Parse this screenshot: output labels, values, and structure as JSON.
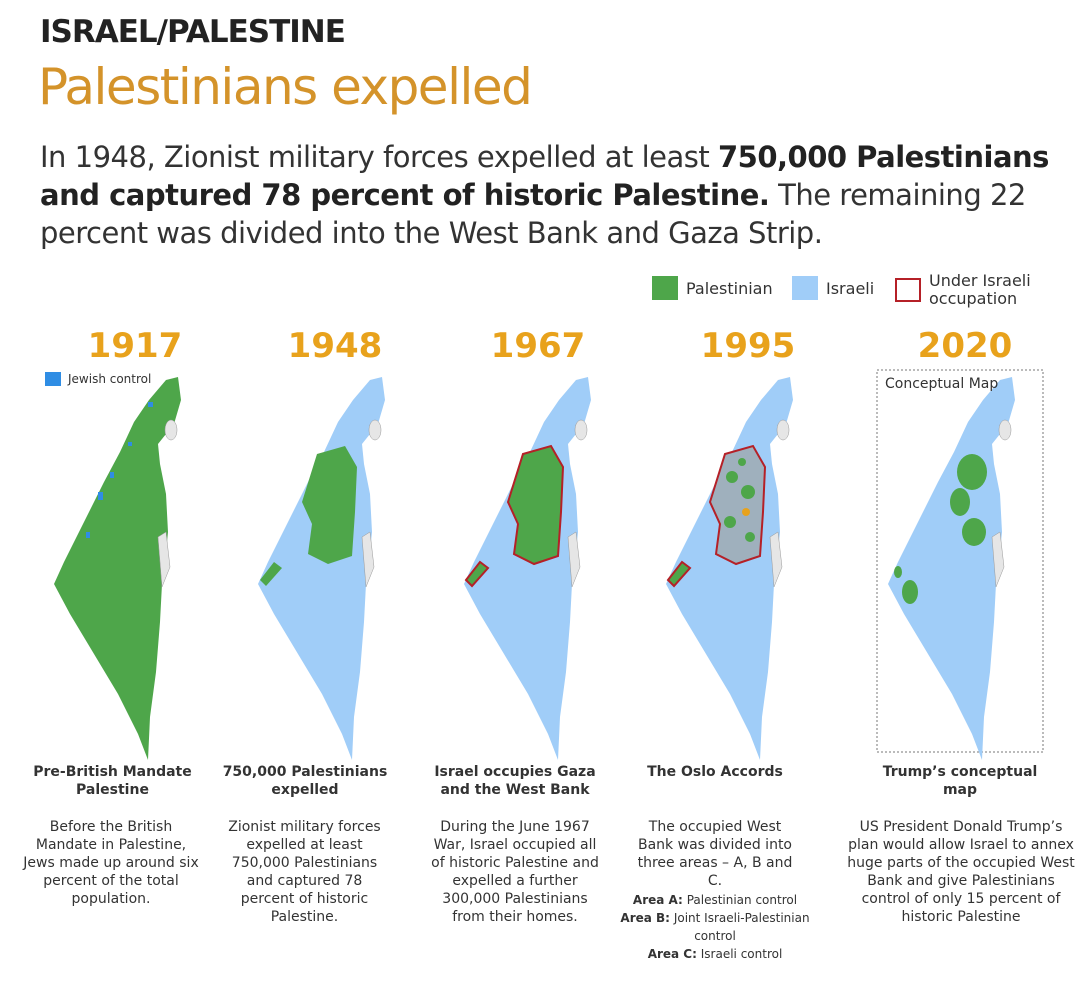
{
  "header": {
    "kicker": "ISRAEL/PALESTINE",
    "title": "Palestinians expelled",
    "intro": [
      "In 1948, Zionist military forces expelled at least ",
      "750,000 Palestinians and captured 78 percent of historic Palestine.",
      " The remaining 22 percent was divided into the West Bank and Gaza Strip."
    ]
  },
  "legend": [
    "Palestinian",
    "Israeli",
    "Under Israeli occupation"
  ],
  "panels": [
    {
      "year": "1917",
      "map_label": "Jewish control",
      "heading": "Pre-British Mandate Palestine",
      "body": "Before the British Mandate in Palestine, Jews made up around six percent of the total population."
    },
    {
      "year": "1948",
      "heading": "750,000 Palestinians expelled",
      "body": "Zionist military forces expelled at least 750,000 Palestinians and captured 78 percent of historic Palestine."
    },
    {
      "year": "1967",
      "heading": "Israel occupies Gaza and the West Bank",
      "body": "During the June 1967 War, Israel occupied all of historic Palestine and expelled a further 300,000 Palestinians from their homes."
    },
    {
      "year": "1995",
      "heading": "The Oslo Accords",
      "body": "The occupied West Bank was divided into three areas – A, B and C.",
      "areas": [
        [
          "Area A:",
          "Palestinian control"
        ],
        [
          "Area B:",
          "Joint Israeli-Palestinian control"
        ],
        [
          "Area C:",
          "Israeli control"
        ]
      ]
    },
    {
      "year": "2020",
      "map_label": "Conceptual Map",
      "heading": "Trump’s conceptual map",
      "body": "US President Donald Trump’s plan would allow Israel to annex huge parts of the occupied West Bank and give Palestinians control of only 15 percent of historic Palestine"
    }
  ]
}
